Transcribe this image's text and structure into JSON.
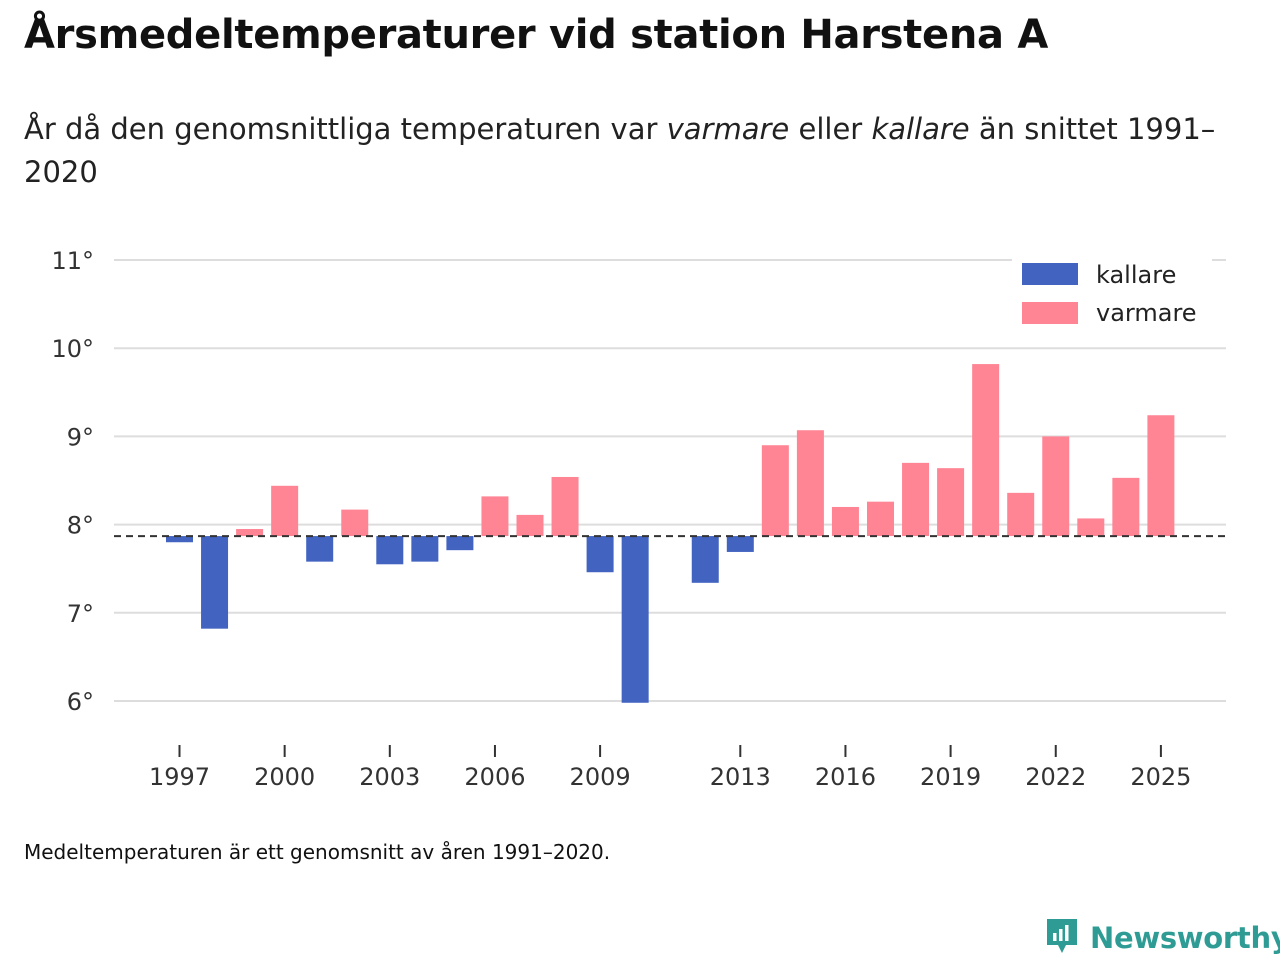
{
  "title": "Årsmedeltemperaturer vid station Harstena A",
  "subtitle": {
    "part1": "År då den genomsnittliga temperaturen var ",
    "warm_word": "varmare",
    "part2": " eller ",
    "cold_word": "kallare",
    "part3": " än snittet 1991–2020"
  },
  "footnote": "Medeltemperaturen är ett genomsnitt av åren 1991–2020.",
  "brand": {
    "name": "Newsworthy",
    "icon": "newsworthy-logo-icon"
  },
  "colors": {
    "kallare": "#4263c0",
    "varmare": "#ff8595",
    "grid": "#dddddd",
    "baseline": "#333333",
    "brand": "#2e9c94"
  },
  "chart_data": {
    "type": "bar",
    "title": "Årsmedeltemperaturer vid station Harstena A",
    "ylim": [
      5.6,
      11
    ],
    "yticks": [
      6,
      7,
      8,
      9,
      10,
      11
    ],
    "ytick_suffix": "°",
    "xticks": [
      1997,
      2000,
      2003,
      2006,
      2009,
      2013,
      2016,
      2019,
      2022,
      2025
    ],
    "xlim": [
      1995.8,
      2026.8
    ],
    "baseline": 7.87,
    "grid": true,
    "legend_position": "top-right",
    "legend": [
      {
        "key": "kallare",
        "label": "kallare"
      },
      {
        "key": "varmare",
        "label": "varmare"
      }
    ],
    "years": [
      1997,
      1998,
      1999,
      2000,
      2001,
      2002,
      2003,
      2004,
      2005,
      2006,
      2007,
      2008,
      2009,
      2010,
      2012,
      2013,
      2014,
      2015,
      2016,
      2017,
      2018,
      2019,
      2020,
      2021,
      2022,
      2023,
      2024,
      2025
    ],
    "values": [
      7.8,
      6.82,
      7.95,
      8.44,
      7.58,
      8.17,
      7.55,
      7.58,
      7.71,
      8.32,
      8.11,
      8.54,
      7.46,
      5.98,
      7.34,
      7.69,
      8.9,
      9.07,
      8.2,
      8.26,
      8.7,
      8.64,
      9.82,
      8.36,
      9.0,
      8.07,
      8.53,
      9.24
    ]
  }
}
